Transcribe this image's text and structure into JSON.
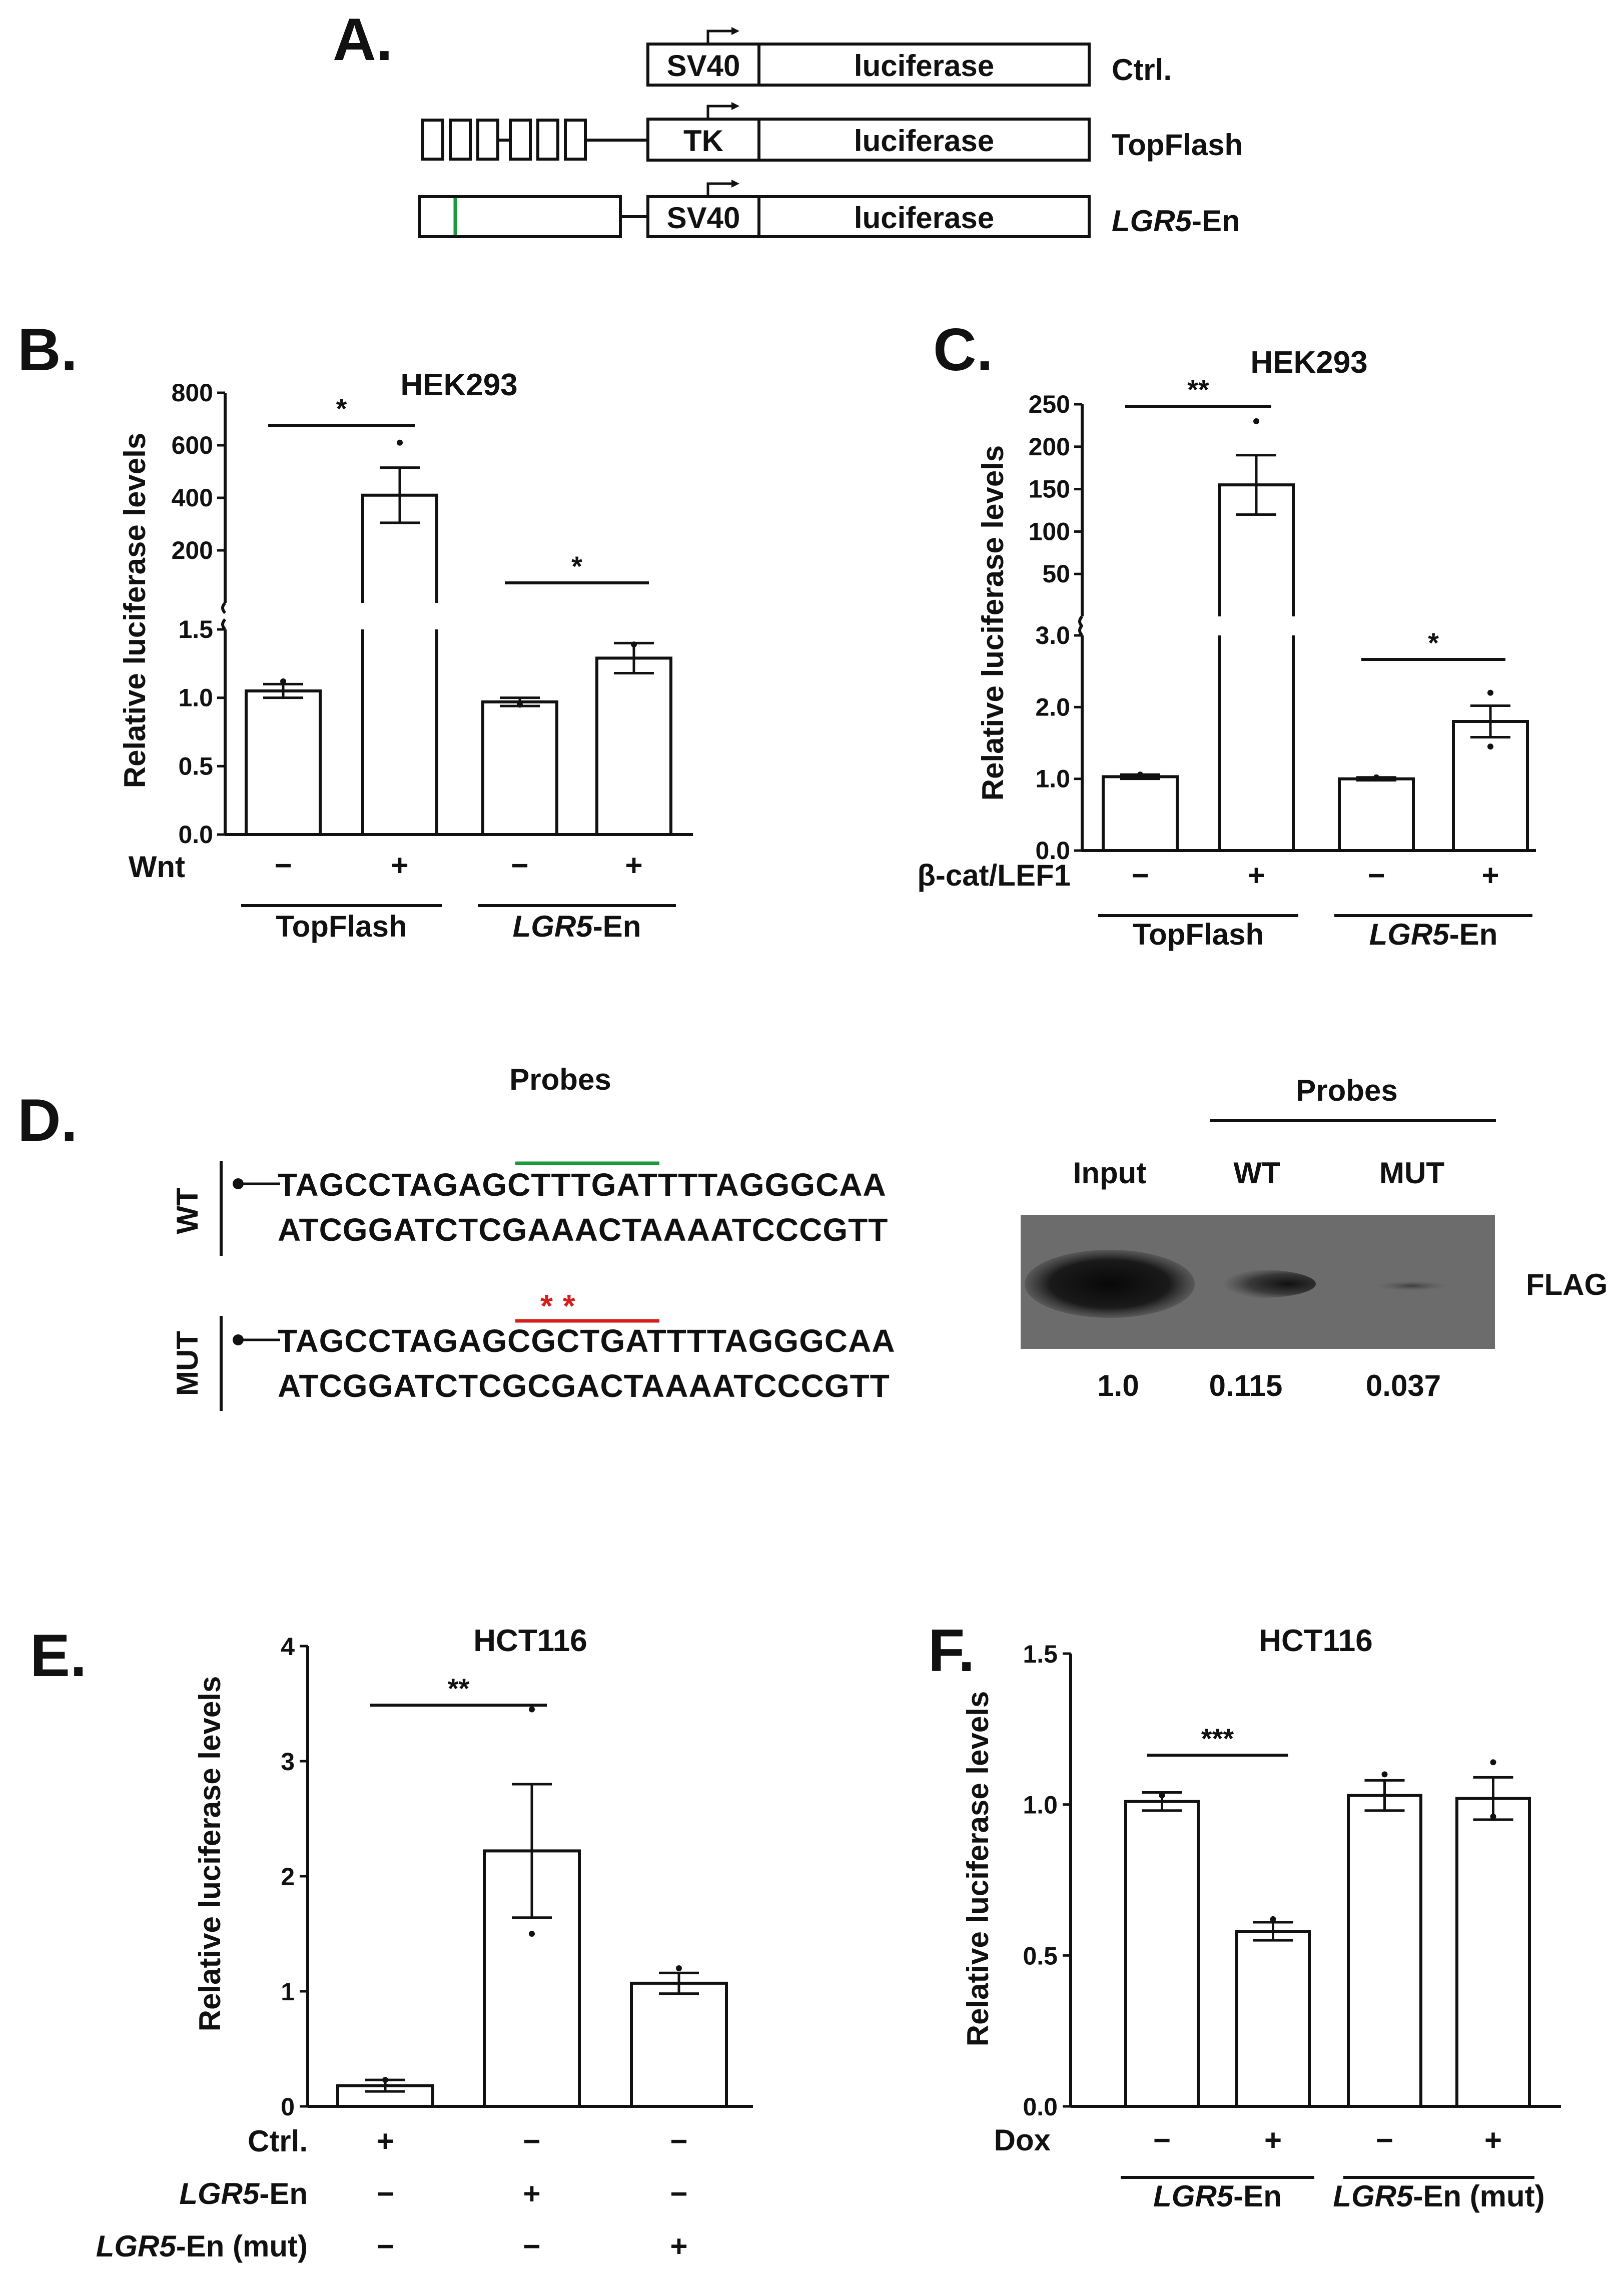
{
  "panels": {
    "A": "A.",
    "B": "B.",
    "C": "C.",
    "D": "D.",
    "E": "E.",
    "F": "F."
  },
  "constructs": [
    {
      "promoter": "SV40",
      "gene": "luciferase",
      "name": "Ctrl.",
      "italic_part": ""
    },
    {
      "promoter": "TK",
      "gene": "luciferase",
      "name": "TopFlash",
      "italic_part": ""
    },
    {
      "promoter": "SV40",
      "gene": "luciferase",
      "name": "-En",
      "italic_part": "LGR5"
    }
  ],
  "probes_D": {
    "left_title": "Probes",
    "wt_label": "WT",
    "mut_label": "MUT",
    "wt_top": "TAGCCTAGAGCTTTGATTTTAGGGCAA",
    "wt_bottom": "ATCGGATCTCGAAACTAAAATCCCGTT",
    "mut_top": "TAGCCTAGAGCGCTGATTTTAGGGCAA",
    "mut_bottom": "ATCGGATCTCGCGACTAAAATCCCGTT",
    "mut_stars": "* *",
    "right_title": "Probes",
    "lanes": [
      "Input",
      "WT",
      "MUT"
    ],
    "antibody": "FLAG",
    "quant": [
      "1.0",
      "0.115",
      "0.037"
    ],
    "band_intensity": [
      1.0,
      0.115,
      0.037
    ]
  },
  "chart_data": [
    {
      "panel": "B",
      "type": "bar",
      "title": "HEK293",
      "ylabel": "Relative luciferase levels",
      "broken_axis": true,
      "lower_ylim": [
        0,
        1.5
      ],
      "lower_ticks": [
        "0.0",
        "0.5",
        "1.0",
        "1.5"
      ],
      "upper_ylim": [
        0,
        800
      ],
      "upper_ticks": [
        "200",
        "400",
        "600",
        "800"
      ],
      "condition_label": "Wnt",
      "categories": [
        "−",
        "+",
        "−",
        "+"
      ],
      "groups": [
        {
          "name": "TopFlash",
          "italic_part": ""
        },
        {
          "name": "-En",
          "italic_part": "LGR5"
        }
      ],
      "values": [
        1.05,
        410,
        0.97,
        1.29
      ],
      "errors": [
        0.05,
        105,
        0.03,
        0.11
      ],
      "points": [
        [
          1.12
        ],
        [
          610
        ],
        [
          0.95
        ],
        [
          1.39
        ]
      ],
      "significance": [
        {
          "from": 0,
          "to": 1,
          "label": "*"
        },
        {
          "from": 2,
          "to": 3,
          "label": "*"
        }
      ]
    },
    {
      "panel": "C",
      "type": "bar",
      "title": "HEK293",
      "ylabel": "Relative luciferase levels",
      "broken_axis": true,
      "lower_ylim": [
        0,
        3.0
      ],
      "lower_ticks": [
        "0.0",
        "1.0",
        "2.0",
        "3.0"
      ],
      "upper_ylim": [
        0,
        250
      ],
      "upper_ticks": [
        "50",
        "100",
        "150",
        "200",
        "250"
      ],
      "condition_label": "β-cat/LEF1",
      "categories": [
        "−",
        "+",
        "−",
        "+"
      ],
      "groups": [
        {
          "name": "TopFlash",
          "italic_part": ""
        },
        {
          "name": "-En",
          "italic_part": "LGR5"
        }
      ],
      "values": [
        1.03,
        155,
        1.0,
        1.8
      ],
      "errors": [
        0.03,
        35,
        0.02,
        0.22
      ],
      "points": [
        [
          1.06
        ],
        [
          230
        ],
        [
          1.02
        ],
        [
          2.2,
          1.45
        ]
      ],
      "significance": [
        {
          "from": 0,
          "to": 1,
          "label": "**"
        },
        {
          "from": 2,
          "to": 3,
          "label": "*"
        }
      ]
    },
    {
      "panel": "E",
      "type": "bar",
      "title": "HCT116",
      "ylabel": "Relative luciferase levels",
      "ylim": [
        0,
        4
      ],
      "ticks": [
        "0",
        "1",
        "2",
        "3",
        "4"
      ],
      "values": [
        0.18,
        2.22,
        1.07
      ],
      "errors": [
        0.05,
        0.58,
        0.09
      ],
      "points": [
        [
          0.23
        ],
        [
          3.45,
          1.5
        ],
        [
          1.2
        ]
      ],
      "rows": [
        {
          "label": "Ctrl.",
          "italic_part": "",
          "marks": [
            "+",
            "−",
            "−"
          ]
        },
        {
          "label": "-En",
          "italic_part": "LGR5",
          "marks": [
            "−",
            "+",
            "−"
          ]
        },
        {
          "label": "-En (mut)",
          "italic_part": "LGR5",
          "marks": [
            "−",
            "−",
            "+"
          ]
        }
      ],
      "significance": [
        {
          "from": 0,
          "to": 1,
          "label": "**"
        }
      ]
    },
    {
      "panel": "F",
      "type": "bar",
      "title": "HCT116",
      "ylabel": "Relative luciferase levels",
      "ylim": [
        0,
        1.5
      ],
      "ticks": [
        "0.0",
        "0.5",
        "1.0",
        "1.5"
      ],
      "condition_label": "Dox",
      "categories": [
        "−",
        "+",
        "−",
        "+"
      ],
      "groups": [
        {
          "name": "-En",
          "italic_part": "LGR5"
        },
        {
          "name": "-En (mut)",
          "italic_part": "LGR5"
        }
      ],
      "values": [
        1.01,
        0.58,
        1.03,
        1.02
      ],
      "errors": [
        0.03,
        0.03,
        0.05,
        0.07
      ],
      "points": [
        [
          1.03
        ],
        [
          0.62
        ],
        [
          1.1
        ],
        [
          1.14,
          0.96
        ]
      ],
      "significance": [
        {
          "from": 0,
          "to": 1,
          "label": "***"
        }
      ]
    }
  ]
}
